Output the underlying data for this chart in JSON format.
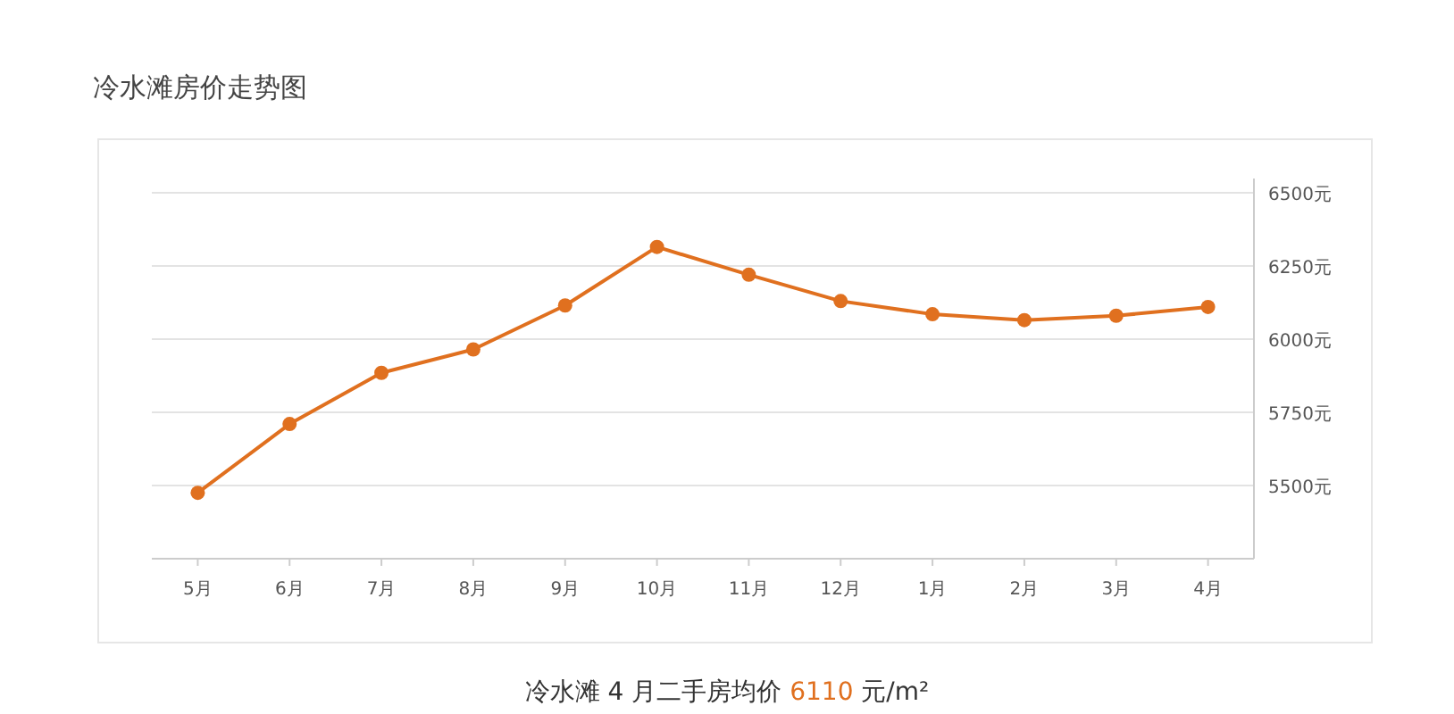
{
  "chart_data": {
    "type": "line",
    "title": "冷水滩房价走势图",
    "categories": [
      "5月",
      "6月",
      "7月",
      "8月",
      "9月",
      "10月",
      "11月",
      "12月",
      "1月",
      "2月",
      "3月",
      "4月"
    ],
    "series": [
      {
        "color": "#e0701f",
        "values": [
          5475,
          5710,
          5885,
          5965,
          6115,
          6315,
          6220,
          6130,
          6085,
          6065,
          6080,
          6110
        ]
      }
    ],
    "ylim": [
      5250,
      6500
    ],
    "yticks": [
      {
        "value": 5500,
        "label": "5500元"
      },
      {
        "value": 5750,
        "label": "5750元"
      },
      {
        "value": 6000,
        "label": "6000元"
      },
      {
        "value": 6250,
        "label": "6250元"
      },
      {
        "value": 6500,
        "label": "6500元"
      }
    ],
    "grid": "y",
    "marker": "circle",
    "line_style": "solid",
    "annotations": [
      "冷水滩 4 月二手房均价 6110 元/m²"
    ]
  }
}
